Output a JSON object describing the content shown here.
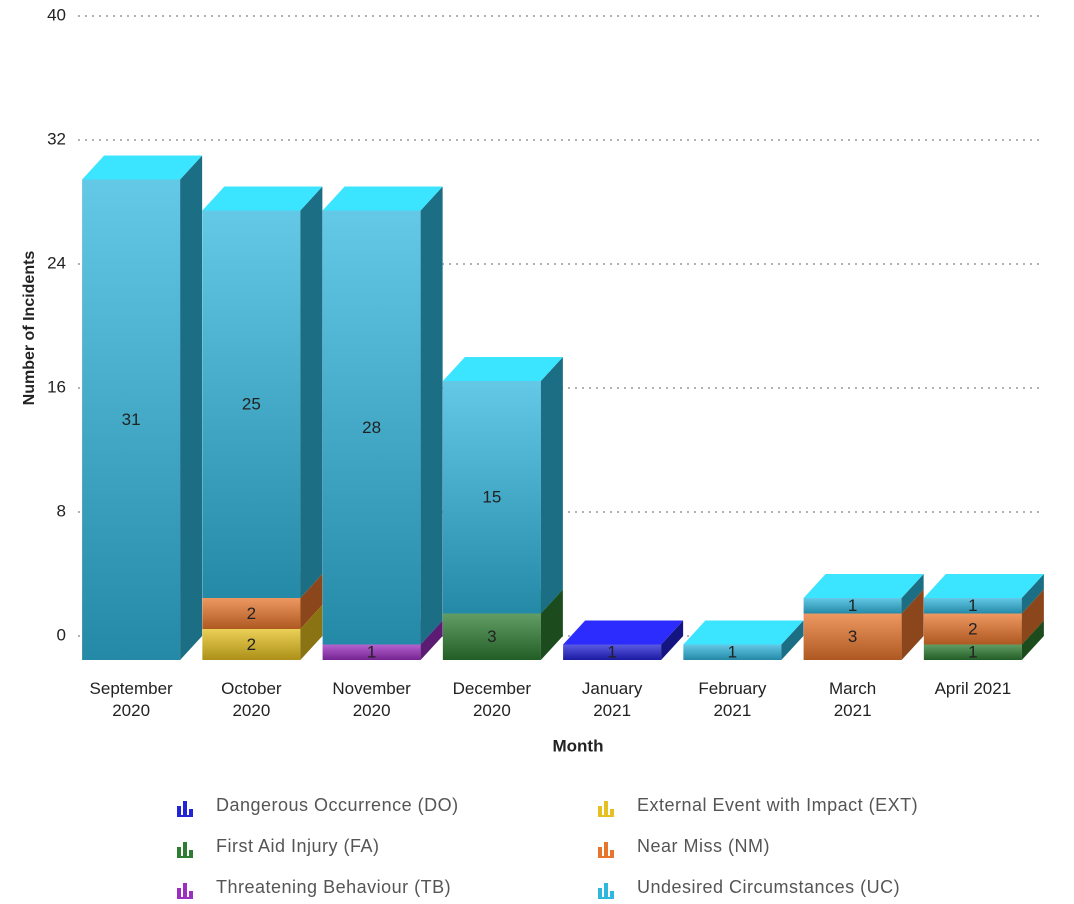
{
  "chart_data": {
    "type": "bar3d_stacked",
    "xlabel": "Month",
    "ylabel": "Number of Incidents",
    "categories": [
      "September\n2020",
      "October\n2020",
      "November\n2020",
      "December\n2020",
      "January\n2021",
      "February\n2021",
      "March\n2021",
      "April 2021"
    ],
    "series": [
      {
        "name": "Dangerous Occurrence (DO)",
        "color": "#2323d8",
        "values": [
          null,
          null,
          null,
          null,
          1,
          null,
          null,
          null
        ]
      },
      {
        "name": "External Event with Impact (EXT)",
        "color": "#e5c020",
        "values": [
          null,
          2,
          null,
          null,
          null,
          null,
          null,
          null
        ]
      },
      {
        "name": "First Aid Injury (FA)",
        "color": "#2e7d32",
        "values": [
          null,
          null,
          null,
          3,
          null,
          null,
          null,
          1
        ]
      },
      {
        "name": "Near Miss (NM)",
        "color": "#e8752d",
        "values": [
          null,
          2,
          null,
          null,
          null,
          null,
          3,
          2
        ]
      },
      {
        "name": "Threatening Behaviour (TB)",
        "color": "#9b2fc0",
        "values": [
          null,
          null,
          1,
          null,
          null,
          null,
          null,
          null
        ]
      },
      {
        "name": "Undesired Circumstances (UC)",
        "color": "#2fb7de",
        "values": [
          31,
          25,
          28,
          15,
          null,
          1,
          1,
          1
        ]
      }
    ],
    "ylim": [
      0,
      40
    ],
    "yticks": [
      0,
      8,
      16,
      24,
      32,
      40
    ],
    "grid": true
  }
}
